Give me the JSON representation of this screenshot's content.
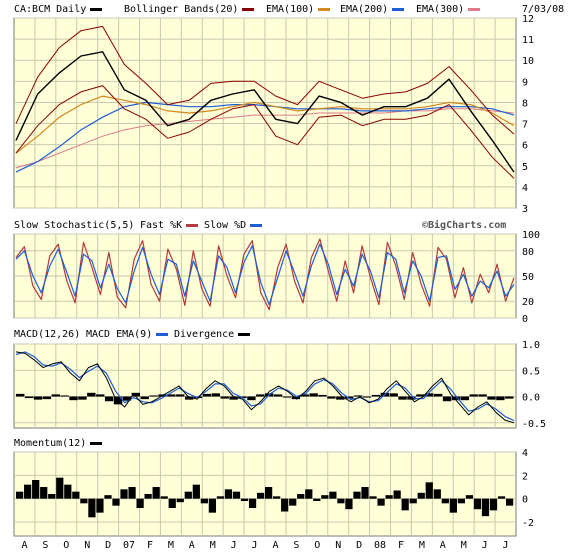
{
  "chart_data": [
    {
      "type": "line",
      "title": "CA:BCM Daily",
      "legend": [
        {
          "name": "CA:BCM Daily",
          "color": "#000000"
        },
        {
          "name": "Bollinger Bands(20)",
          "color": "#8b0000"
        },
        {
          "name": "EMA(100)",
          "color": "#d4891e"
        },
        {
          "name": "EMA(200)",
          "color": "#1f5fd6"
        },
        {
          "name": "EMA(300)",
          "color": "#e07a8a"
        }
      ],
      "date": "7/03/08",
      "ylim": [
        3,
        12
      ],
      "yticks": [
        3,
        4,
        5,
        6,
        7,
        8,
        9,
        10,
        11,
        12
      ],
      "x": [
        "Aug 06",
        "Sep 06",
        "Oct 06",
        "Nov 06",
        "Dec 06",
        "Jan 07",
        "Feb 07",
        "Mar 07",
        "Apr 07",
        "May 07",
        "Jun 07",
        "Jul 07",
        "Aug 07",
        "Sep 07",
        "Oct 07",
        "Nov 07",
        "Dec 07",
        "Jan 08",
        "Feb 08",
        "Mar 08",
        "Apr 08",
        "May 08",
        "Jun 08",
        "Jul 08"
      ],
      "series": [
        {
          "name": "CA:BCM Daily",
          "values": [
            6.2,
            8.4,
            9.4,
            10.2,
            10.4,
            8.6,
            8.1,
            6.9,
            7.2,
            8.1,
            8.4,
            8.6,
            7.2,
            7.0,
            8.3,
            8.0,
            7.4,
            7.8,
            7.8,
            8.2,
            9.1,
            7.6,
            6.2,
            4.7
          ]
        },
        {
          "name": "Bollinger Bands(20)",
          "values": [
            7.0,
            9.2,
            10.6,
            11.4,
            11.6,
            9.8,
            8.9,
            7.9,
            8.1,
            8.9,
            9.0,
            9.0,
            8.3,
            7.9,
            9.0,
            8.6,
            8.2,
            8.4,
            8.5,
            8.9,
            9.7,
            8.6,
            7.4,
            6.5
          ]
        },
        {
          "name": "Bollinger Bands(20)",
          "values": [
            5.6,
            6.9,
            7.9,
            8.5,
            8.8,
            7.7,
            7.2,
            6.3,
            6.6,
            7.2,
            7.7,
            7.9,
            6.4,
            6.0,
            7.3,
            7.4,
            6.9,
            7.2,
            7.2,
            7.4,
            7.9,
            6.7,
            5.4,
            4.4
          ]
        },
        {
          "name": "EMA(100)",
          "values": [
            5.6,
            6.4,
            7.3,
            7.9,
            8.3,
            8.1,
            7.9,
            7.6,
            7.5,
            7.6,
            7.8,
            8.0,
            7.8,
            7.6,
            7.7,
            7.8,
            7.7,
            7.7,
            7.7,
            7.8,
            8.0,
            7.9,
            7.5,
            6.9
          ]
        },
        {
          "name": "EMA(200)",
          "values": [
            4.7,
            5.2,
            5.9,
            6.7,
            7.3,
            7.8,
            8.0,
            7.9,
            7.8,
            7.8,
            7.9,
            7.9,
            7.8,
            7.7,
            7.7,
            7.7,
            7.6,
            7.6,
            7.6,
            7.7,
            7.8,
            7.8,
            7.7,
            7.4
          ]
        },
        {
          "name": "EMA(300)",
          "values": [
            4.9,
            5.2,
            5.6,
            6.0,
            6.4,
            6.7,
            6.9,
            7.0,
            7.1,
            7.2,
            7.3,
            7.4,
            7.4,
            7.4,
            7.5,
            7.5,
            7.5,
            7.5,
            7.6,
            7.6,
            7.7,
            7.7,
            7.6,
            7.5
          ]
        }
      ]
    },
    {
      "type": "line",
      "title": "Slow Stochastic(5,5)",
      "legend": [
        {
          "name": "Fast %K",
          "color": "#b33a3a"
        },
        {
          "name": "Slow %D",
          "color": "#1f5fd6"
        }
      ],
      "watermark": "©BigCharts.com",
      "ylim": [
        0,
        100
      ],
      "yticks": [
        0,
        20,
        50,
        80,
        100
      ],
      "series": [
        {
          "name": "Fast %K",
          "values": [
            72,
            85,
            38,
            22,
            74,
            88,
            45,
            18,
            90,
            60,
            28,
            78,
            25,
            12,
            70,
            92,
            40,
            20,
            82,
            58,
            15,
            80,
            35,
            14,
            86,
            50,
            24,
            76,
            92,
            30,
            10,
            60,
            88,
            44,
            18,
            72,
            94,
            56,
            20,
            68,
            30,
            86,
            48,
            16,
            90,
            62,
            22,
            78,
            40,
            14,
            84,
            70,
            24,
            60,
            18,
            52,
            30,
            64,
            20,
            48
          ]
        },
        {
          "name": "Slow %D",
          "values": [
            70,
            80,
            50,
            30,
            62,
            82,
            55,
            26,
            76,
            68,
            36,
            64,
            35,
            18,
            56,
            84,
            52,
            28,
            70,
            64,
            26,
            68,
            44,
            20,
            74,
            60,
            30,
            66,
            86,
            42,
            16,
            48,
            80,
            54,
            26,
            62,
            88,
            64,
            28,
            58,
            38,
            76,
            56,
            24,
            78,
            70,
            30,
            68,
            50,
            20,
            72,
            74,
            34,
            52,
            26,
            44,
            36,
            56,
            26,
            40
          ]
        }
      ]
    },
    {
      "type": "line",
      "title": "MACD(12,26)",
      "legend": [
        {
          "name": "MACD EMA(9)",
          "color": "#1f5fd6"
        },
        {
          "name": "Divergence",
          "color": "#000000"
        }
      ],
      "ylim": [
        -0.6,
        1.0
      ],
      "yticks": [
        -0.5,
        0.0,
        0.5,
        1.0
      ],
      "series": [
        {
          "name": "MACD(12,26)",
          "values": [
            0.85,
            0.82,
            0.7,
            0.55,
            0.62,
            0.66,
            0.45,
            0.3,
            0.55,
            0.62,
            0.35,
            -0.05,
            -0.2,
            0.05,
            -0.15,
            -0.1,
            0.0,
            0.1,
            0.2,
            0.0,
            -0.05,
            0.15,
            0.3,
            0.2,
            0.0,
            -0.05,
            -0.25,
            -0.1,
            0.1,
            0.2,
            0.1,
            -0.05,
            0.1,
            0.3,
            0.35,
            0.2,
            0.0,
            -0.1,
            0.0,
            -0.12,
            -0.05,
            0.15,
            0.3,
            0.1,
            -0.1,
            0.0,
            0.2,
            0.35,
            0.05,
            -0.15,
            -0.35,
            -0.2,
            -0.1,
            -0.3,
            -0.45,
            -0.5
          ]
        },
        {
          "name": "MACD EMA(9)",
          "values": [
            0.8,
            0.85,
            0.76,
            0.6,
            0.58,
            0.64,
            0.52,
            0.36,
            0.48,
            0.58,
            0.44,
            0.1,
            -0.12,
            -0.02,
            -0.1,
            -0.12,
            -0.04,
            0.06,
            0.16,
            0.06,
            -0.02,
            0.1,
            0.24,
            0.24,
            0.06,
            -0.02,
            -0.18,
            -0.14,
            0.04,
            0.16,
            0.12,
            0.0,
            0.06,
            0.24,
            0.32,
            0.24,
            0.06,
            -0.06,
            -0.02,
            -0.1,
            -0.08,
            0.08,
            0.24,
            0.16,
            -0.04,
            -0.04,
            0.14,
            0.3,
            0.14,
            -0.08,
            -0.28,
            -0.24,
            -0.14,
            -0.24,
            -0.38,
            -0.46
          ]
        },
        {
          "name": "Divergence",
          "values": [
            0.05,
            -0.03,
            -0.06,
            -0.05,
            0.04,
            0.02,
            -0.07,
            -0.06,
            0.07,
            0.04,
            -0.09,
            -0.15,
            -0.08,
            0.07,
            -0.05,
            0.02,
            0.04,
            0.04,
            0.04,
            -0.06,
            -0.03,
            0.05,
            0.06,
            -0.04,
            -0.06,
            -0.03,
            -0.07,
            0.04,
            0.06,
            0.04,
            -0.02,
            -0.05,
            0.04,
            0.06,
            0.03,
            -0.04,
            -0.06,
            -0.04,
            0.02,
            -0.02,
            0.03,
            0.07,
            0.06,
            -0.06,
            -0.06,
            0.04,
            0.06,
            0.05,
            -0.09,
            -0.07,
            -0.07,
            0.04,
            0.04,
            -0.06,
            -0.07,
            -0.04
          ]
        }
      ]
    },
    {
      "type": "bar",
      "title": "Momentum(12)",
      "ylim": [
        -3.2,
        4
      ],
      "yticks": [
        -2,
        0,
        2,
        4
      ],
      "values": [
        0.6,
        1.2,
        1.6,
        1.0,
        0.4,
        1.8,
        1.2,
        0.6,
        -0.4,
        -1.6,
        -1.2,
        0.3,
        -0.6,
        0.8,
        1.0,
        -0.8,
        0.4,
        1.0,
        0.2,
        -0.8,
        -0.3,
        0.6,
        1.2,
        -0.4,
        -1.2,
        0.2,
        0.8,
        0.6,
        -0.2,
        -0.8,
        0.5,
        1.0,
        0.2,
        -1.1,
        -0.6,
        0.4,
        0.8,
        -0.2,
        0.3,
        0.6,
        -0.4,
        -0.9,
        0.6,
        1.0,
        0.2,
        -0.6,
        0.3,
        0.7,
        -1.0,
        -0.4,
        0.5,
        1.4,
        0.8,
        -0.4,
        -1.2,
        -0.4,
        0.3,
        -0.9,
        -1.5,
        -1.0,
        0.2,
        -0.6
      ]
    }
  ],
  "x_axis": {
    "labels": [
      "A",
      "S",
      "O",
      "N",
      "D",
      "07",
      "F",
      "M",
      "A",
      "M",
      "J",
      "J",
      "A",
      "S",
      "O",
      "N",
      "D",
      "08",
      "F",
      "M",
      "A",
      "M",
      "J",
      "J"
    ]
  },
  "colors": {
    "plot_background": "#ffffd8",
    "grid": "#c8c8b0",
    "price": "#000000",
    "bollinger": "#8b0000",
    "ema100": "#d4891e",
    "ema200": "#1f5fd6",
    "ema300": "#e07a8a",
    "stoch_k": "#b33a3a",
    "stoch_d": "#1f5fd6",
    "macd": "#000000",
    "macd_signal": "#1f5fd6",
    "divergence": "#000000",
    "momentum": "#000000"
  }
}
